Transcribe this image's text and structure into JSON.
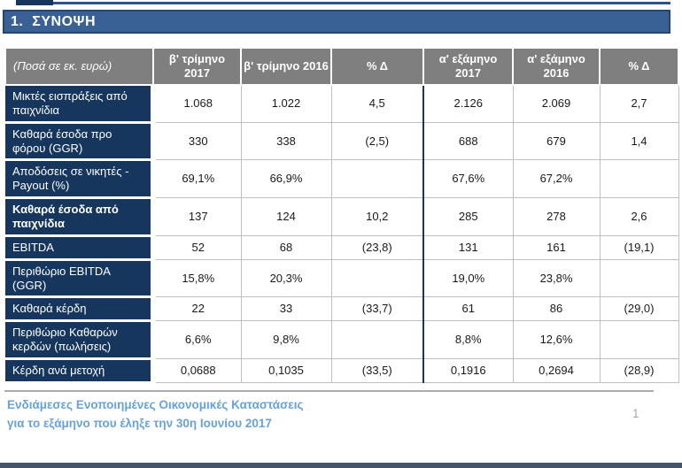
{
  "header": {
    "title": "1.  ΣΥΝΟΨΗ"
  },
  "table": {
    "unit_label": "(Ποσά σε εκ. ευρώ)",
    "columns": [
      "β' τρίμηνο 2017",
      "β' τρίμηνο 2016",
      "% Δ",
      "α' εξάμηνο 2017",
      "α' εξάμηνο 2016",
      "% Δ"
    ],
    "rows": [
      {
        "label": "Μικτές εισπράξεις από παιχνίδια",
        "bold": false,
        "values": [
          "1.068",
          "1.022",
          "4,5",
          "2.126",
          "2.069",
          "2,7"
        ]
      },
      {
        "label": "Καθαρά έσοδα προ φόρου (GGR)",
        "bold": false,
        "values": [
          "330",
          "338",
          "(2,5)",
          "688",
          "679",
          "1,4"
        ]
      },
      {
        "label": "Αποδόσεις σε νικητές - Payout (%)",
        "bold": false,
        "values": [
          "69,1%",
          "66,9%",
          "",
          "67,6%",
          "67,2%",
          ""
        ]
      },
      {
        "label": "Καθαρά έσοδα από παιχνίδια",
        "bold": true,
        "values": [
          "137",
          "124",
          "10,2",
          "285",
          "278",
          "2,6"
        ]
      },
      {
        "label": "EBITDA",
        "bold": false,
        "values": [
          "52",
          "68",
          "(23,8)",
          "131",
          "161",
          "(19,1)"
        ]
      },
      {
        "label": "Περιθώριο EBITDA (GGR)",
        "bold": false,
        "values": [
          "15,8%",
          "20,3%",
          "",
          "19,0%",
          "23,8%",
          ""
        ]
      },
      {
        "label": "Καθαρά κέρδη",
        "bold": false,
        "values": [
          "22",
          "33",
          "(33,7)",
          "61",
          "86",
          "(29,0)"
        ]
      },
      {
        "label": "Περιθώριο Καθαρών κερδών (πωλήσεις)",
        "bold": false,
        "values": [
          "6,6%",
          "9,8%",
          "",
          "8,8%",
          "12,6%",
          ""
        ]
      },
      {
        "label": "Κέρδη ανά μετοχή",
        "bold": false,
        "values": [
          "0,0688",
          "0,1035",
          "(33,5)",
          "0,1916",
          "0,2694",
          "(28,9)"
        ]
      }
    ]
  },
  "footer": {
    "line1": "Ενδιάμεσες Ενοποιημένες Οικονομικές Καταστάσεις",
    "line2": "για το εξάμηνο που έληξε την 30η Ιουνίου 2017",
    "page_number": "1"
  },
  "colors": {
    "title_bar": "#3A6195",
    "title_border": "#27466F",
    "header_gray": "#7F7F7F",
    "label_navy": "#17365D",
    "divider_navy": "#17365D",
    "cell_border": "#BFBFBF",
    "footer_rule": "#ABABAB",
    "footer_text": "#67A2D8",
    "page_number": "#A6A6A6",
    "bottom_bar": "#44546A",
    "top_rule": "#2E5287"
  }
}
